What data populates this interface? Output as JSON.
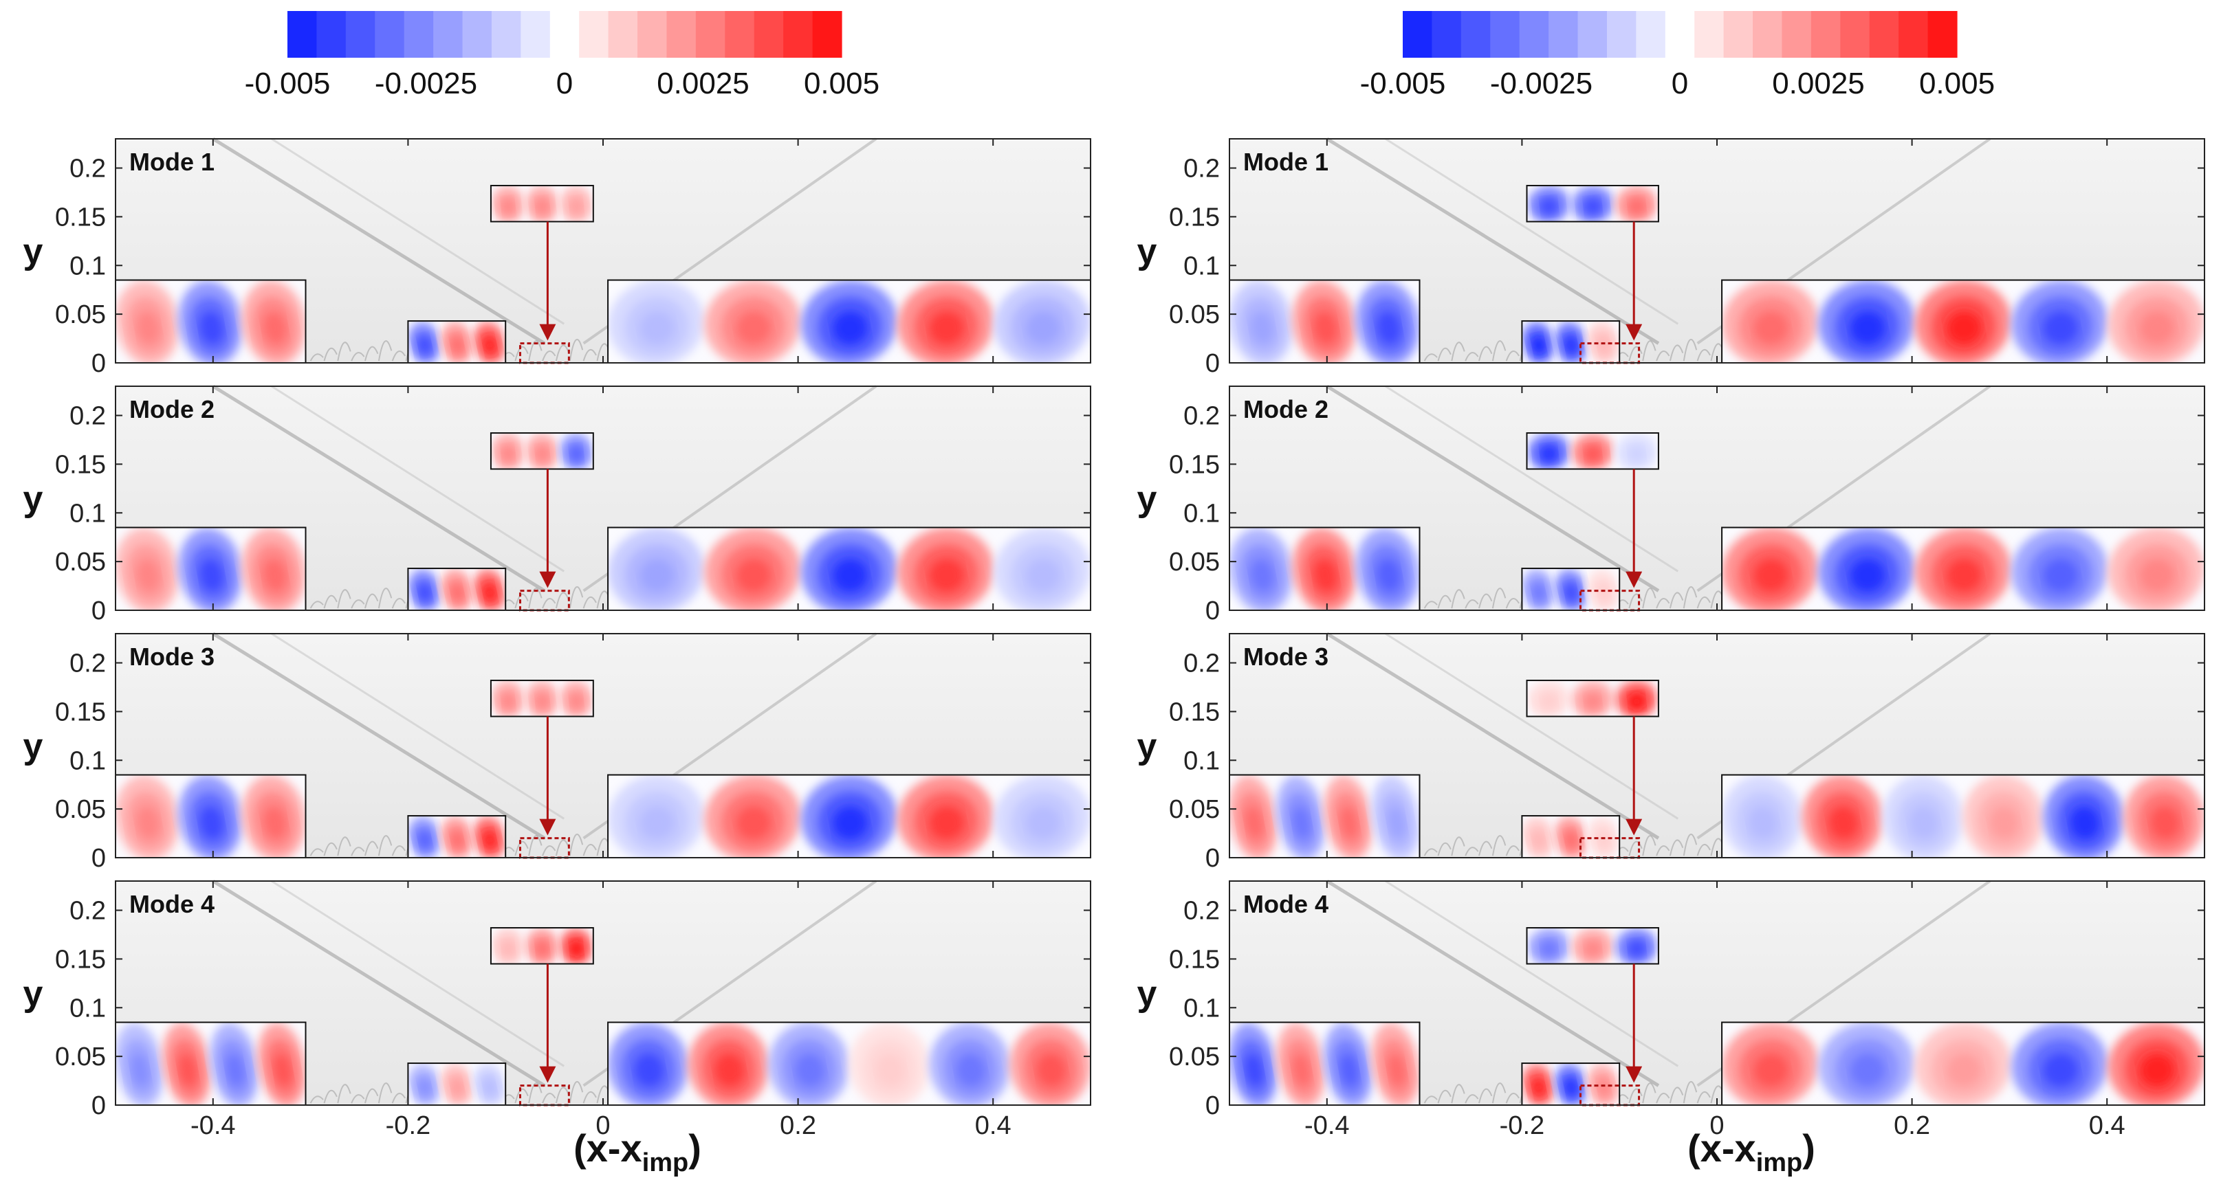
{
  "chart_data": {
    "type": "heatmap",
    "colorbar": {
      "min": -0.005,
      "max": 0.005,
      "levels": 19,
      "tick_labels": [
        "-0.005",
        "-0.0025",
        "0",
        "0.0025",
        "0.005"
      ],
      "tick_values": [
        -0.005,
        -0.0025,
        0,
        0.0025,
        0.005
      ],
      "neg_color": "#0b1cff",
      "mid_color": "#ffffff",
      "pos_color": "#ff0a0a"
    },
    "x_axis": {
      "label_main": "(x-x",
      "label_sub": "imp",
      "label_close": ")",
      "range": [
        -0.5,
        0.5
      ],
      "tick_values": [
        -0.4,
        -0.2,
        0,
        0.2,
        0.4
      ],
      "tick_labels": [
        "-0.4",
        "-0.2",
        "0",
        "0.2",
        "0.4"
      ]
    },
    "y_axis": {
      "label": "y",
      "range": [
        0,
        0.23
      ],
      "tick_values": [
        0,
        0.05,
        0.1,
        0.15,
        0.2
      ],
      "tick_labels": [
        "0",
        "0.05",
        "0.1",
        "0.15",
        "0.2"
      ]
    },
    "columns": [
      {
        "panels": [
          {
            "title": "Mode 1",
            "left_pattern": [
              0.5,
              -0.8,
              0.6
            ],
            "right_pattern": [
              -0.3,
              0.6,
              -0.9,
              0.8,
              -0.4
            ],
            "small_pattern": [
              -0.8,
              0.6,
              0.9
            ],
            "zoom_pattern": [
              0.5,
              0.5,
              0.4
            ]
          },
          {
            "title": "Mode 2",
            "left_pattern": [
              0.5,
              -0.8,
              0.6
            ],
            "right_pattern": [
              -0.4,
              0.7,
              -0.9,
              0.8,
              -0.3
            ],
            "small_pattern": [
              -0.8,
              0.6,
              0.9
            ],
            "zoom_pattern": [
              0.5,
              0.5,
              -0.7
            ]
          },
          {
            "title": "Mode 3",
            "left_pattern": [
              0.5,
              -0.8,
              0.6
            ],
            "right_pattern": [
              -0.3,
              0.7,
              -0.9,
              0.8,
              -0.3
            ],
            "small_pattern": [
              -0.7,
              0.6,
              0.9
            ],
            "zoom_pattern": [
              0.5,
              0.5,
              0.5
            ]
          },
          {
            "title": "Mode 4",
            "left_pattern": [
              -0.5,
              0.7,
              -0.6,
              0.7
            ],
            "right_pattern": [
              -0.8,
              0.8,
              -0.6,
              0.2,
              -0.6,
              0.7
            ],
            "small_pattern": [
              -0.5,
              0.4,
              -0.3
            ],
            "zoom_pattern": [
              0.3,
              0.6,
              0.95
            ]
          }
        ]
      },
      {
        "panels": [
          {
            "title": "Mode 1",
            "left_pattern": [
              -0.4,
              0.7,
              -0.8
            ],
            "right_pattern": [
              0.6,
              -0.9,
              0.9,
              -0.8,
              0.5
            ],
            "small_pattern": [
              -0.95,
              -0.9,
              0.3
            ],
            "zoom_pattern": [
              -0.8,
              -0.8,
              0.6
            ]
          },
          {
            "title": "Mode 2",
            "left_pattern": [
              -0.6,
              0.8,
              -0.7
            ],
            "right_pattern": [
              0.8,
              -0.9,
              0.8,
              -0.7,
              0.5
            ],
            "small_pattern": [
              -0.6,
              -0.8,
              0.2
            ],
            "zoom_pattern": [
              -0.9,
              0.7,
              -0.2
            ]
          },
          {
            "title": "Mode 3",
            "left_pattern": [
              0.6,
              -0.6,
              0.6,
              -0.4
            ],
            "right_pattern": [
              -0.3,
              0.8,
              -0.3,
              0.4,
              -0.9,
              0.7
            ],
            "small_pattern": [
              0.3,
              0.6,
              0.2
            ],
            "zoom_pattern": [
              0.2,
              0.5,
              0.95
            ]
          },
          {
            "title": "Mode 4",
            "left_pattern": [
              -0.8,
              0.6,
              -0.7,
              0.6
            ],
            "right_pattern": [
              0.7,
              -0.6,
              0.4,
              -0.8,
              0.9
            ],
            "small_pattern": [
              0.9,
              -0.9,
              0.5
            ],
            "zoom_pattern": [
              -0.6,
              0.5,
              -0.8
            ]
          }
        ]
      }
    ]
  }
}
